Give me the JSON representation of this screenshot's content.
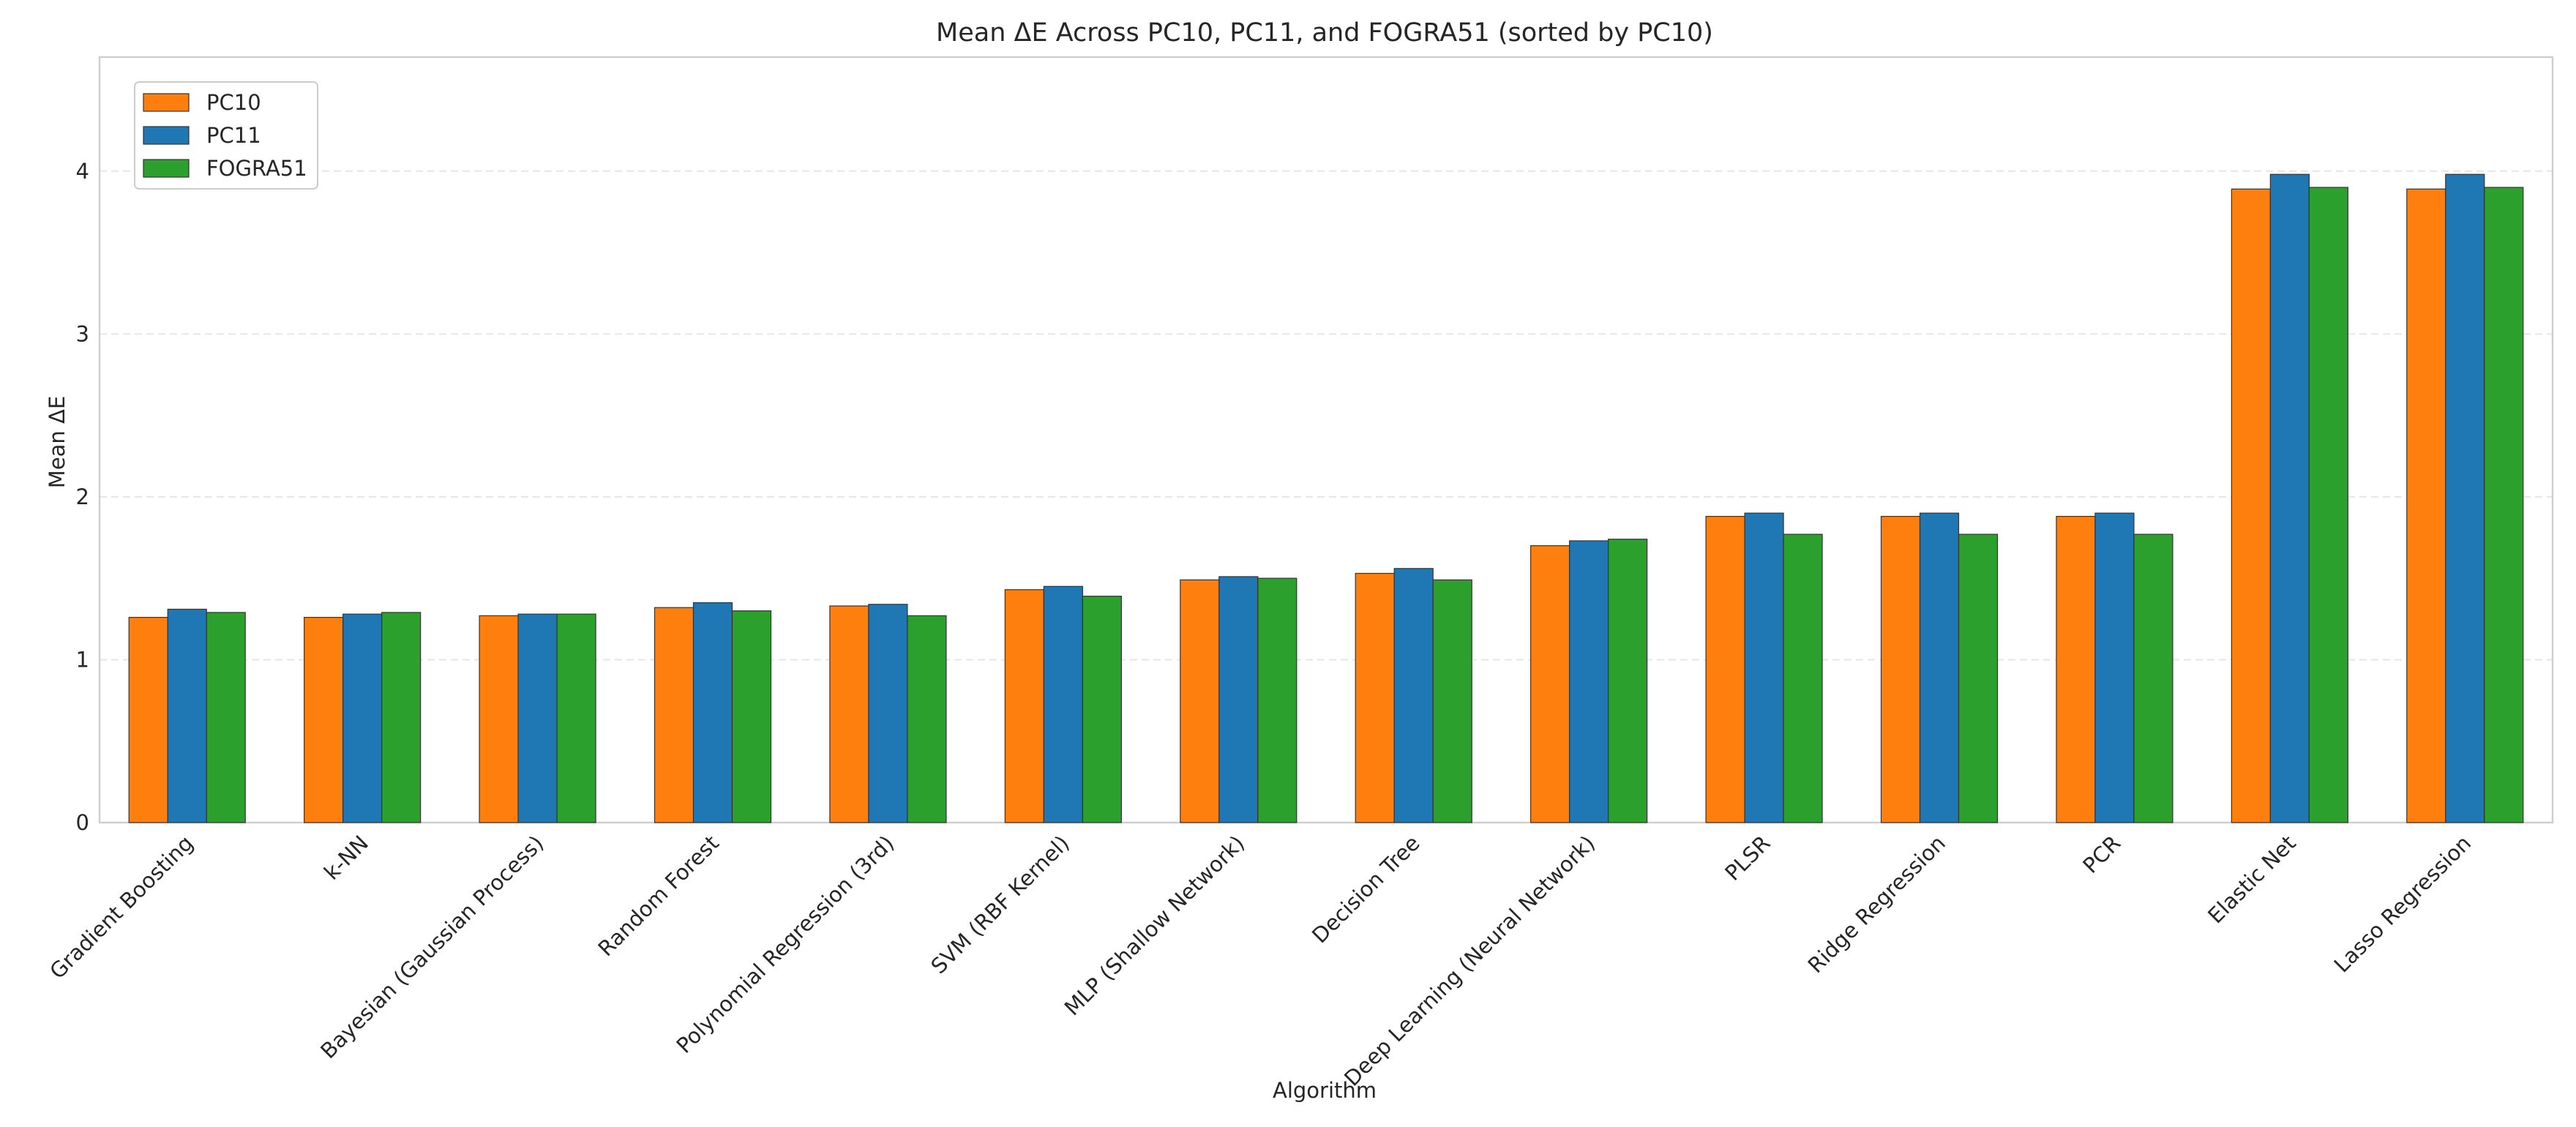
{
  "chart_data": {
    "type": "bar",
    "title": "Mean ΔE Across PC10, PC11, and FOGRA51 (sorted by PC10)",
    "xlabel": "Algorithm",
    "ylabel": "Mean ΔE",
    "ylim": [
      0,
      4.7
    ],
    "yticks": [
      0,
      1,
      2,
      3,
      4
    ],
    "grid": "y-dashed",
    "legend_position": "top-left",
    "categories": [
      "Gradient Boosting",
      "k-NN",
      "Bayesian (Gaussian Process)",
      "Random Forest",
      "Polynomial Regression (3rd)",
      "SVM (RBF Kernel)",
      "MLP (Shallow Network)",
      "Decision Tree",
      "Deep Learning (Neural Network)",
      "PLSR",
      "Ridge Regression",
      "PCR",
      "Elastic Net",
      "Lasso Regression"
    ],
    "series": [
      {
        "name": "PC10",
        "color": "#ff7f0e",
        "values": [
          1.26,
          1.26,
          1.27,
          1.32,
          1.33,
          1.43,
          1.49,
          1.53,
          1.7,
          1.88,
          1.88,
          1.88,
          3.89,
          3.89
        ]
      },
      {
        "name": "PC11",
        "color": "#1f77b4",
        "values": [
          1.31,
          1.28,
          1.28,
          1.35,
          1.34,
          1.45,
          1.51,
          1.56,
          1.73,
          1.9,
          1.9,
          1.9,
          3.98,
          3.98
        ]
      },
      {
        "name": "FOGRA51",
        "color": "#2ca02c",
        "values": [
          1.29,
          1.29,
          1.28,
          1.3,
          1.27,
          1.39,
          1.5,
          1.49,
          1.74,
          1.77,
          1.77,
          1.77,
          3.9,
          3.9
        ]
      }
    ]
  }
}
